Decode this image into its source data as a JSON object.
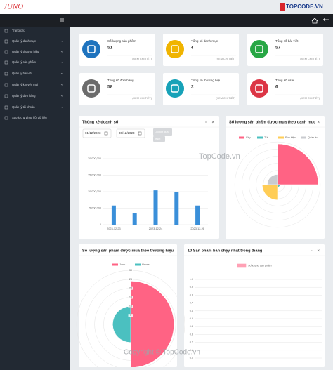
{
  "logo": "JUNO",
  "watermark": {
    "brand": "TOPCODE.VN",
    "center": "TopCode.vn",
    "footer": "Copyright © TopCode.vn"
  },
  "sidebar": {
    "items": [
      "Trang chủ",
      "Quản lý danh mục",
      "Quản lý thương hiệu",
      "Quản lý sản phẩm",
      "Quản lý bài viết",
      "Quản lý khuyến mại",
      "Quản lý đơn hàng",
      "Quản lý tài khoản",
      "Sao lưu & phục hồi dữ liệu"
    ]
  },
  "cards": [
    {
      "label": "Số lượng sản phẩm",
      "value": "51",
      "link": "(XEM CHI TIẾT)",
      "color": "#1e73be"
    },
    {
      "label": "Tổng số danh mục",
      "value": "4",
      "link": "(XEM CHI TIẾT)",
      "color": "#f0b400"
    },
    {
      "label": "Tổng số bài viết",
      "value": "57",
      "link": "(XEM CHI TIẾT)",
      "color": "#28a745"
    },
    {
      "label": "Tổng số đơn hàng",
      "value": "58",
      "link": "(XEM CHI TIẾT)",
      "color": "#6c6c6c"
    },
    {
      "label": "Tổng số thương hiệu",
      "value": "2",
      "link": "(XEM CHI TIẾT)",
      "color": "#17a2b8"
    },
    {
      "label": "Tổng số user",
      "value": "6",
      "link": "(XEM CHI TIẾT)",
      "color": "#dc3545"
    }
  ],
  "sales_filter": {
    "date_from": "01/12/2023",
    "date_to": "30/12/2023",
    "filter_button": "Lọc kết quả",
    "reset_button": "reset"
  },
  "chart_data": [
    {
      "type": "bar",
      "title": "Thống kê doanh số",
      "categories": [
        "2023-12-23",
        null,
        "2023-12-24",
        null,
        "2023-12-26"
      ],
      "values": [
        5800000,
        3400000,
        10400000,
        10000000,
        5800000
      ],
      "color": "#3a8fd9",
      "ylim": [
        0,
        20000000
      ],
      "yticks": [
        0,
        {
          "value": 5000000,
          "label": "5,000,000"
        },
        {
          "value": 10000000,
          "label": "10,000,000"
        },
        {
          "value": 15000000,
          "label": "15,000,000"
        },
        {
          "value": 20000000,
          "label": "20,000,000"
        }
      ],
      "grid": true
    },
    {
      "type": "polar",
      "title": "Số lượng sản phẩm được mua theo danh mục",
      "categories": [
        "Váy",
        "Túi",
        "Phụ kiện",
        "Quần áo"
      ],
      "values": [
        16,
        1,
        6,
        4
      ],
      "colors": [
        "#ff6384",
        "#4bc0c0",
        "#ffcd56",
        "#c9cbcf"
      ],
      "rlim": [
        0,
        16
      ]
    },
    {
      "type": "polar",
      "title": "Số lượng sản phẩm được mua theo thương hiệu",
      "categories": [
        "Juno",
        "Hnoss"
      ],
      "values": [
        24,
        10
      ],
      "colors": [
        "#ff6384",
        "#4bc0c0"
      ],
      "rlim": [
        0,
        30
      ],
      "rticks": [
        5,
        10,
        15,
        20,
        25,
        30
      ]
    },
    {
      "type": "bar",
      "title": "10 Sản phẩm bán chạy nhất trong tháng",
      "series": [
        {
          "name": "Số lượng sản phẩm",
          "color": "#ff6384",
          "values": []
        }
      ],
      "categories": [],
      "ylim": [
        0,
        1
      ],
      "yticks": [
        {
          "value": 0,
          "label": "0.0"
        },
        {
          "value": 0.1,
          "label": "0.1"
        },
        {
          "value": 0.2,
          "label": "0.2"
        },
        {
          "value": 0.3,
          "label": "0.3"
        },
        {
          "value": 0.4,
          "label": "0.4"
        },
        {
          "value": 0.5,
          "label": "0.5"
        },
        {
          "value": 0.6,
          "label": "0.6"
        },
        {
          "value": 0.7,
          "label": "0.7"
        },
        {
          "value": 0.8,
          "label": "0.8"
        },
        {
          "value": 0.9,
          "label": "0.9"
        },
        {
          "value": 1,
          "label": "1.0"
        }
      ],
      "grid": true
    }
  ]
}
